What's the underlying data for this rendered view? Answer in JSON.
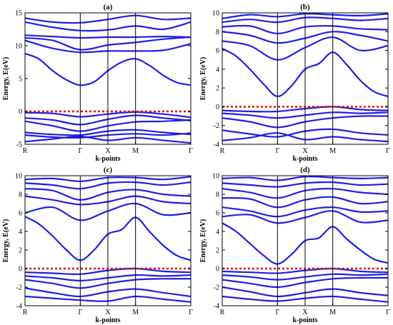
{
  "chart_data": [
    {
      "type": "line",
      "title": "(a)",
      "xlabel": "k-points",
      "ylabel": "Energy, E(eV)",
      "ylim": [
        -5,
        15
      ],
      "yticks": [
        -5,
        0,
        5,
        10,
        15
      ],
      "ytick_labels": [
        "-5",
        "0",
        "5",
        "10",
        "15"
      ],
      "kpoints": [
        {
          "label": "R",
          "x": 0
        },
        {
          "label": "Γ",
          "x": 1
        },
        {
          "label": "X",
          "x": 1.5
        },
        {
          "label": "M",
          "x": 2
        },
        {
          "label": "Γ",
          "x": 3
        }
      ],
      "fermi_level": 0,
      "band_color": "#1f1fe6",
      "fermi_color": "#e60000",
      "bands": [
        {
          "x": [
            0,
            0.25,
            0.5,
            0.75,
            1,
            1.25,
            1.5,
            1.75,
            2,
            2.25,
            2.5,
            2.75,
            3
          ],
          "y": [
            8.8,
            8.0,
            6.2,
            4.8,
            4.0,
            4.5,
            6.2,
            7.5,
            8.0,
            7.0,
            5.5,
            4.4,
            4.0
          ]
        },
        {
          "x": [
            0,
            0.5,
            1,
            1.5,
            2,
            2.5,
            3
          ],
          "y": [
            10.8,
            9.6,
            9.0,
            9.2,
            9.2,
            9.3,
            10.3
          ]
        },
        {
          "x": [
            0,
            0.5,
            1,
            1.5,
            2,
            2.5,
            3
          ],
          "y": [
            11.2,
            10.8,
            9.4,
            10.1,
            10.5,
            11.0,
            11.3
          ]
        },
        {
          "x": [
            0,
            0.5,
            1,
            1.5,
            2,
            2.5,
            3
          ],
          "y": [
            11.6,
            11.4,
            11.2,
            11.3,
            11.3,
            11.4,
            11.3
          ]
        },
        {
          "x": [
            0,
            0.5,
            1,
            1.5,
            2,
            2.5,
            3
          ],
          "y": [
            13.6,
            12.8,
            12.3,
            12.4,
            13.0,
            12.5,
            13.6
          ]
        },
        {
          "x": [
            0,
            0.5,
            1,
            1.5,
            2,
            2.5,
            3
          ],
          "y": [
            14.2,
            13.6,
            13.5,
            14.0,
            14.6,
            14.0,
            14.2
          ]
        },
        {
          "x": [
            0,
            0.5,
            1,
            1.5,
            2,
            2.5,
            3
          ],
          "y": [
            -0.2,
            -0.3,
            -0.8,
            -0.4,
            -0.1,
            -0.4,
            -0.9
          ]
        },
        {
          "x": [
            0,
            0.5,
            1,
            1.5,
            2,
            2.5,
            3
          ],
          "y": [
            -1.0,
            -1.3,
            -2.0,
            -1.2,
            -0.6,
            -1.0,
            -1.4
          ]
        },
        {
          "x": [
            0,
            0.5,
            1,
            1.5,
            2,
            2.5,
            3
          ],
          "y": [
            -1.5,
            -2.2,
            -3.0,
            -2.2,
            -1.6,
            -1.5,
            -1.3
          ]
        },
        {
          "x": [
            0,
            0.5,
            1,
            1.5,
            2,
            2.5,
            3
          ],
          "y": [
            -3.2,
            -3.5,
            -3.6,
            -3.0,
            -2.8,
            -3.2,
            -3.5
          ]
        },
        {
          "x": [
            0,
            0.5,
            1,
            1.5,
            2,
            2.5,
            3
          ],
          "y": [
            -3.6,
            -3.9,
            -4.0,
            -3.6,
            -3.4,
            -3.6,
            -3.3
          ]
        },
        {
          "x": [
            0,
            0.5,
            1,
            1.5,
            2,
            2.5,
            3
          ],
          "y": [
            -4.6,
            -4.2,
            -3.8,
            -4.4,
            -4.0,
            -4.4,
            -4.8
          ]
        }
      ]
    },
    {
      "type": "line",
      "title": "(b)",
      "xlabel": "k-points",
      "ylabel": "Energy, E(eV)",
      "ylim": [
        -4,
        10
      ],
      "yticks": [
        -4,
        -2,
        0,
        2,
        4,
        6,
        8,
        10
      ],
      "ytick_labels": [
        "-4",
        "-2",
        "0",
        "2",
        "4",
        "6",
        "8",
        "10"
      ],
      "kpoints": [
        {
          "label": "R",
          "x": 0
        },
        {
          "label": "Γ",
          "x": 1
        },
        {
          "label": "X",
          "x": 1.5
        },
        {
          "label": "M",
          "x": 2
        },
        {
          "label": "Γ",
          "x": 3
        }
      ],
      "fermi_level": 0,
      "band_color": "#1f1fe6",
      "fermi_color": "#e60000",
      "bands": [
        {
          "x": [
            0,
            0.25,
            0.5,
            0.75,
            1,
            1.25,
            1.5,
            1.75,
            2,
            2.25,
            2.5,
            2.75,
            3
          ],
          "y": [
            6.2,
            5.4,
            4.0,
            2.4,
            1.1,
            2.2,
            4.0,
            4.6,
            5.8,
            4.5,
            2.8,
            1.6,
            1.1
          ]
        },
        {
          "x": [
            0,
            0.5,
            1,
            1.5,
            2,
            2.5,
            3
          ],
          "y": [
            7.0,
            6.5,
            5.0,
            6.3,
            7.4,
            6.0,
            6.5
          ]
        },
        {
          "x": [
            0,
            0.5,
            1,
            1.5,
            2,
            2.5,
            3
          ],
          "y": [
            8.0,
            7.6,
            6.8,
            7.3,
            8.0,
            7.6,
            7.0
          ]
        },
        {
          "x": [
            0,
            0.5,
            1,
            1.5,
            2,
            2.5,
            3
          ],
          "y": [
            8.5,
            8.6,
            7.8,
            8.5,
            8.6,
            8.3,
            8.2
          ]
        },
        {
          "x": [
            0,
            0.5,
            1,
            1.5,
            2,
            2.5,
            3
          ],
          "y": [
            9.0,
            9.3,
            9.0,
            9.5,
            9.4,
            9.2,
            9.4
          ]
        },
        {
          "x": [
            0,
            0.5,
            1,
            1.5,
            2,
            2.5,
            3
          ],
          "y": [
            9.4,
            9.8,
            9.6,
            9.9,
            9.8,
            9.7,
            9.9
          ]
        },
        {
          "x": [
            0,
            0.5,
            1,
            1.5,
            2,
            2.5,
            3
          ],
          "y": [
            -0.4,
            -0.5,
            -0.5,
            -0.2,
            0.0,
            -0.3,
            -0.4
          ]
        },
        {
          "x": [
            0,
            0.5,
            1,
            1.5,
            2,
            2.5,
            3
          ],
          "y": [
            -0.7,
            -0.9,
            -1.2,
            -0.9,
            -0.6,
            -0.7,
            -0.6
          ]
        },
        {
          "x": [
            0,
            0.5,
            1,
            1.5,
            2,
            2.5,
            3
          ],
          "y": [
            -1.2,
            -1.6,
            -2.2,
            -1.6,
            -1.2,
            -1.0,
            -1.0
          ]
        },
        {
          "x": [
            0,
            0.5,
            1,
            1.5,
            2,
            2.5,
            3
          ],
          "y": [
            -2.5,
            -2.9,
            -3.2,
            -2.6,
            -2.4,
            -2.8,
            -3.0
          ]
        },
        {
          "x": [
            0,
            0.5,
            1,
            1.5,
            2,
            2.5,
            3
          ],
          "y": [
            -3.6,
            -3.3,
            -2.8,
            -3.5,
            -3.2,
            -3.5,
            -3.7
          ]
        }
      ]
    },
    {
      "type": "line",
      "title": "(c)",
      "xlabel": "k-points",
      "ylabel": "Energy, E(eV)",
      "ylim": [
        -4,
        10
      ],
      "yticks": [
        -4,
        -2,
        0,
        2,
        4,
        6,
        8,
        10
      ],
      "ytick_labels": [
        "-4",
        "-2",
        "0",
        "2",
        "4",
        "6",
        "8",
        "10"
      ],
      "kpoints": [
        {
          "label": "R",
          "x": 0
        },
        {
          "label": "Γ",
          "x": 1
        },
        {
          "label": "X",
          "x": 1.5
        },
        {
          "label": "M",
          "x": 2
        },
        {
          "label": "Γ",
          "x": 3
        }
      ],
      "fermi_level": 0,
      "band_color": "#1f1fe6",
      "fermi_color": "#e60000",
      "bands": [
        {
          "x": [
            0,
            0.25,
            0.5,
            0.75,
            1,
            1.25,
            1.5,
            1.75,
            2,
            2.25,
            2.5,
            2.75,
            3
          ],
          "y": [
            5.6,
            4.8,
            3.5,
            2.0,
            0.9,
            2.0,
            3.7,
            4.2,
            5.5,
            4.0,
            2.5,
            1.4,
            0.9
          ]
        },
        {
          "x": [
            0,
            0.5,
            1,
            1.5,
            2,
            2.5,
            3
          ],
          "y": [
            6.0,
            6.6,
            5.2,
            6.2,
            7.0,
            5.8,
            6.0
          ]
        },
        {
          "x": [
            0,
            0.5,
            1,
            1.5,
            2,
            2.5,
            3
          ],
          "y": [
            7.8,
            7.4,
            6.9,
            7.2,
            7.8,
            7.2,
            7.0
          ]
        },
        {
          "x": [
            0,
            0.5,
            1,
            1.5,
            2,
            2.5,
            3
          ],
          "y": [
            8.6,
            8.4,
            7.4,
            8.2,
            8.5,
            8.0,
            7.8
          ]
        },
        {
          "x": [
            0,
            0.5,
            1,
            1.5,
            2,
            2.5,
            3
          ],
          "y": [
            9.2,
            9.0,
            8.6,
            9.2,
            9.3,
            9.0,
            9.3
          ]
        },
        {
          "x": [
            0,
            0.5,
            1,
            1.5,
            2,
            2.5,
            3
          ],
          "y": [
            9.6,
            9.7,
            9.4,
            9.8,
            9.8,
            9.6,
            9.9
          ]
        },
        {
          "x": [
            0,
            0.5,
            1,
            1.5,
            2,
            2.5,
            3
          ],
          "y": [
            -0.4,
            -0.5,
            -0.6,
            -0.2,
            0.0,
            -0.3,
            -0.4
          ]
        },
        {
          "x": [
            0,
            0.5,
            1,
            1.5,
            2,
            2.5,
            3
          ],
          "y": [
            -0.8,
            -1.0,
            -1.3,
            -1.0,
            -0.7,
            -0.8,
            -0.7
          ]
        },
        {
          "x": [
            0,
            0.5,
            1,
            1.5,
            2,
            2.5,
            3
          ],
          "y": [
            -1.2,
            -1.6,
            -2.1,
            -1.6,
            -1.2,
            -1.1,
            -1.1
          ]
        },
        {
          "x": [
            0,
            0.5,
            1,
            1.5,
            2,
            2.5,
            3
          ],
          "y": [
            -2.1,
            -2.6,
            -3.0,
            -2.5,
            -2.2,
            -2.6,
            -3.0
          ]
        },
        {
          "x": [
            0,
            0.5,
            1,
            1.5,
            2,
            2.5,
            3
          ],
          "y": [
            -3.0,
            -3.2,
            -3.4,
            -3.5,
            -3.0,
            -3.3,
            -3.6
          ]
        }
      ]
    },
    {
      "type": "line",
      "title": "(d)",
      "xlabel": "k-points",
      "ylabel": "Energy, E(eV)",
      "ylim": [
        -4,
        10
      ],
      "yticks": [
        -4,
        -2,
        0,
        2,
        4,
        6,
        8,
        10
      ],
      "ytick_labels": [
        "-4",
        "-2",
        "0",
        "2",
        "4",
        "6",
        "8",
        "10"
      ],
      "kpoints": [
        {
          "label": "R",
          "x": 0
        },
        {
          "label": "Γ",
          "x": 1
        },
        {
          "label": "X",
          "x": 1.5
        },
        {
          "label": "M",
          "x": 2
        },
        {
          "label": "Γ",
          "x": 3
        }
      ],
      "fermi_level": 0,
      "band_color": "#1f1fe6",
      "fermi_color": "#e60000",
      "bands": [
        {
          "x": [
            0,
            0.25,
            0.5,
            0.75,
            1,
            1.25,
            1.5,
            1.75,
            2,
            2.25,
            2.5,
            2.75,
            3
          ],
          "y": [
            4.9,
            4.0,
            2.7,
            1.4,
            0.5,
            1.5,
            3.0,
            3.3,
            4.5,
            3.2,
            2.0,
            1.0,
            0.6
          ]
        },
        {
          "x": [
            0,
            0.5,
            1,
            1.5,
            2,
            2.5,
            3
          ],
          "y": [
            5.6,
            5.8,
            4.9,
            5.5,
            6.2,
            5.0,
            5.2
          ]
        },
        {
          "x": [
            0,
            0.5,
            1,
            1.5,
            2,
            2.5,
            3
          ],
          "y": [
            6.6,
            6.2,
            5.6,
            6.3,
            6.6,
            6.1,
            6.2
          ]
        },
        {
          "x": [
            0,
            0.5,
            1,
            1.5,
            2,
            2.5,
            3
          ],
          "y": [
            7.6,
            7.5,
            6.6,
            7.4,
            7.7,
            7.0,
            7.2
          ]
        },
        {
          "x": [
            0,
            0.5,
            1,
            1.5,
            2,
            2.5,
            3
          ],
          "y": [
            8.6,
            8.2,
            7.6,
            8.4,
            8.6,
            8.2,
            8.0
          ]
        },
        {
          "x": [
            0,
            0.5,
            1,
            1.5,
            2,
            2.5,
            3
          ],
          "y": [
            9.2,
            9.0,
            8.8,
            9.2,
            9.3,
            9.0,
            9.1
          ]
        },
        {
          "x": [
            0,
            0.5,
            1,
            1.5,
            2,
            2.5,
            3
          ],
          "y": [
            9.7,
            9.8,
            9.5,
            9.9,
            9.8,
            9.7,
            9.8
          ]
        },
        {
          "x": [
            0,
            0.5,
            1,
            1.5,
            2,
            2.5,
            3
          ],
          "y": [
            -0.3,
            -0.4,
            -0.5,
            -0.2,
            0.0,
            -0.3,
            -0.4
          ]
        },
        {
          "x": [
            0,
            0.5,
            1,
            1.5,
            2,
            2.5,
            3
          ],
          "y": [
            -0.7,
            -0.9,
            -1.2,
            -0.9,
            -0.6,
            -0.7,
            -0.6
          ]
        },
        {
          "x": [
            0,
            0.5,
            1,
            1.5,
            2,
            2.5,
            3
          ],
          "y": [
            -1.2,
            -1.6,
            -2.0,
            -1.5,
            -1.1,
            -1.0,
            -1.0
          ]
        },
        {
          "x": [
            0,
            0.5,
            1,
            1.5,
            2,
            2.5,
            3
          ],
          "y": [
            -2.0,
            -2.5,
            -3.0,
            -2.6,
            -2.2,
            -2.6,
            -2.9
          ]
        },
        {
          "x": [
            0,
            0.5,
            1,
            1.5,
            2,
            2.5,
            3
          ],
          "y": [
            -3.0,
            -3.3,
            -3.5,
            -3.2,
            -3.0,
            -3.3,
            -3.6
          ]
        }
      ]
    }
  ]
}
